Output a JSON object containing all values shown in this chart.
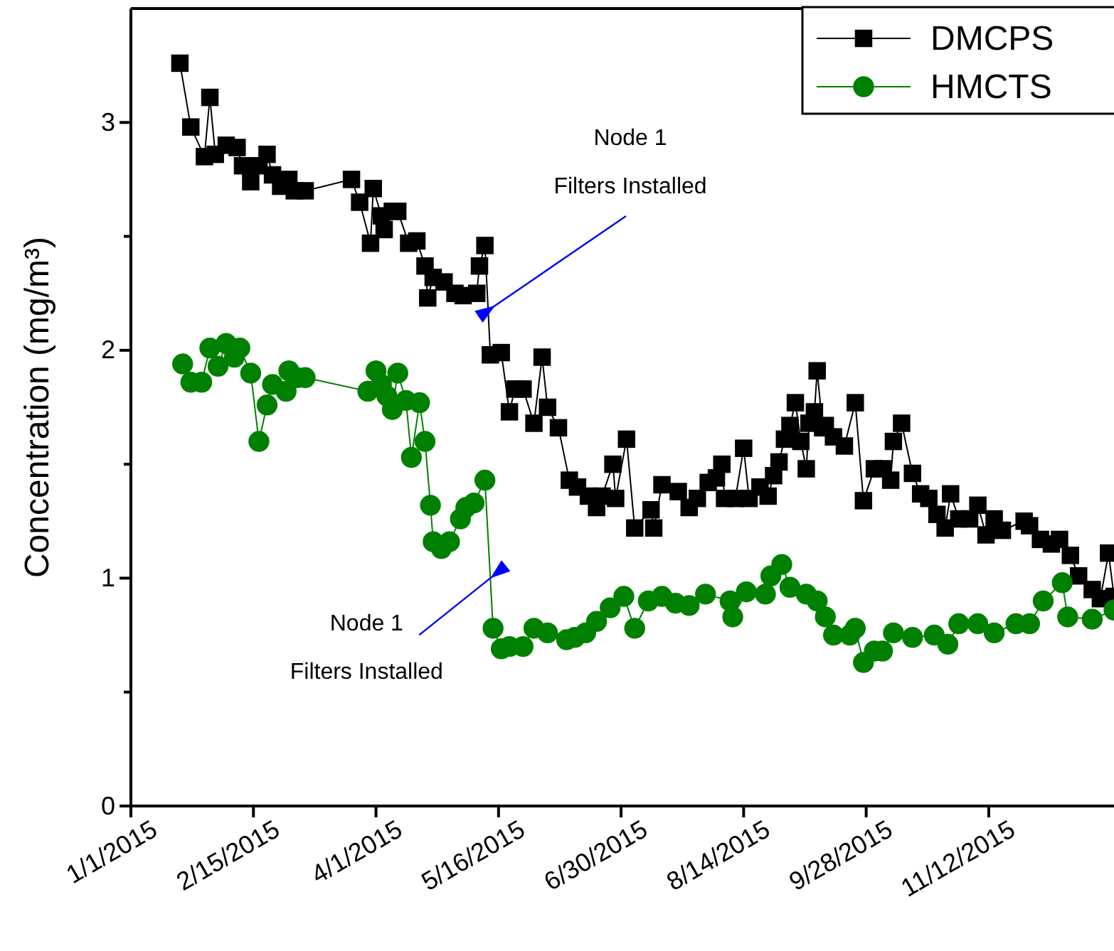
{
  "chart_data": {
    "type": "line",
    "xlabel": null,
    "ylabel": "Concentration (mg/m³)",
    "xlim": [
      "2015-01-01",
      "2015-12-28"
    ],
    "xticks": [
      {
        "value": "2015-01-01",
        "label": "1/1/2015"
      },
      {
        "value": "2015-02-15",
        "label": "2/15/2015"
      },
      {
        "value": "2015-04-01",
        "label": "4/1/2015"
      },
      {
        "value": "2015-05-16",
        "label": "5/16/2015"
      },
      {
        "value": "2015-06-30",
        "label": "6/30/2015"
      },
      {
        "value": "2015-08-14",
        "label": "8/14/2015"
      },
      {
        "value": "2015-09-28",
        "label": "9/28/2015"
      },
      {
        "value": "2015-11-12",
        "label": "11/12/2015"
      }
    ],
    "ylim": [
      0,
      3.5
    ],
    "yticks": [
      0,
      {
        "value": 0.5,
        "label": null
      },
      1,
      {
        "value": 1.5,
        "label": null
      },
      2,
      {
        "value": 2.5,
        "label": null
      },
      3
    ],
    "grid": false,
    "legend": "top right",
    "annotations": [
      "Node 1\nFilters Installed",
      {
        "text": "Node 1\nFilters Installed",
        "x": "2015-05-13",
        "y": 1.0
      }
    ],
    "series": [
      {
        "name": "DMCPS",
        "color": "#000000",
        "marker": "square",
        "x": [
          "2015-01-19",
          "2015-01-23",
          "2015-01-28",
          "2015-01-30",
          "2015-02-01",
          "2015-02-05",
          "2015-02-09",
          "2015-02-11",
          "2015-02-14",
          "2015-02-17",
          "2015-02-20",
          "2015-02-22",
          "2015-02-25",
          "2015-02-28",
          "2015-03-02",
          "2015-03-06",
          "2015-03-23",
          "2015-03-26",
          "2015-03-30",
          "2015-03-31",
          "2015-04-03",
          "2015-04-04",
          "2015-04-07",
          "2015-04-09",
          "2015-04-13",
          "2015-04-16",
          "2015-04-19",
          "2015-04-20",
          "2015-04-22",
          "2015-04-26",
          "2015-04-30",
          "2015-05-03",
          "2015-05-08",
          "2015-05-09",
          "2015-05-11",
          "2015-05-13",
          "2015-05-17",
          "2015-05-20",
          "2015-05-22",
          "2015-05-25",
          "2015-05-29",
          "2015-06-01",
          "2015-06-03",
          "2015-06-07",
          "2015-06-11",
          "2015-06-14",
          "2015-06-18",
          "2015-06-21",
          "2015-06-23",
          "2015-06-27",
          "2015-06-28",
          "2015-07-02",
          "2015-07-05",
          "2015-07-11",
          "2015-07-12",
          "2015-07-15",
          "2015-07-21",
          "2015-07-25",
          "2015-07-28",
          "2015-08-01",
          "2015-08-04",
          "2015-08-06",
          "2015-08-07",
          "2015-08-11",
          "2015-08-14",
          "2015-08-16",
          "2015-08-20",
          "2015-08-23",
          "2015-08-25",
          "2015-08-27",
          "2015-08-29",
          "2015-08-31",
          "2015-09-02",
          "2015-09-04",
          "2015-09-06",
          "2015-09-07",
          "2015-09-09",
          "2015-09-10",
          "2015-09-12",
          "2015-09-13",
          "2015-09-16",
          "2015-09-20",
          "2015-09-24",
          "2015-09-27",
          "2015-10-01",
          "2015-10-04",
          "2015-10-07",
          "2015-10-08",
          "2015-10-11",
          "2015-10-15",
          "2015-10-18",
          "2015-10-21",
          "2015-10-24",
          "2015-10-27",
          "2015-10-29",
          "2015-11-01",
          "2015-11-05",
          "2015-11-08",
          "2015-11-11",
          "2015-11-14",
          "2015-11-17",
          "2015-11-25",
          "2015-11-27",
          "2015-12-01",
          "2015-12-05",
          "2015-12-08",
          "2015-12-12",
          "2015-12-15",
          "2015-12-20",
          "2015-12-23",
          "2015-12-26",
          "2015-12-28"
        ],
        "values": [
          3.26,
          2.98,
          2.85,
          3.11,
          2.86,
          2.9,
          2.89,
          2.81,
          2.74,
          2.81,
          2.86,
          2.77,
          2.72,
          2.75,
          2.7,
          2.7,
          2.75,
          2.65,
          2.47,
          2.71,
          2.59,
          2.53,
          2.61,
          2.61,
          2.47,
          2.48,
          2.37,
          2.23,
          2.32,
          2.3,
          2.25,
          2.24,
          2.25,
          2.37,
          2.46,
          1.98,
          1.99,
          1.73,
          1.83,
          1.83,
          1.68,
          1.97,
          1.75,
          1.66,
          1.43,
          1.4,
          1.36,
          1.31,
          1.36,
          1.5,
          1.35,
          1.61,
          1.22,
          1.3,
          1.22,
          1.41,
          1.38,
          1.31,
          1.35,
          1.42,
          1.44,
          1.5,
          1.35,
          1.35,
          1.57,
          1.35,
          1.4,
          1.36,
          1.45,
          1.51,
          1.61,
          1.67,
          1.77,
          1.6,
          1.48,
          1.68,
          1.73,
          1.91,
          1.66,
          1.67,
          1.62,
          1.58,
          1.77,
          1.34,
          1.48,
          1.48,
          1.43,
          1.6,
          1.68,
          1.46,
          1.37,
          1.35,
          1.28,
          1.22,
          1.37,
          1.26,
          1.26,
          1.32,
          1.19,
          1.26,
          1.21,
          1.25,
          1.23,
          1.17,
          1.15,
          1.17,
          1.1,
          1.01,
          0.95,
          0.91,
          1.11,
          0.92
        ]
      },
      {
        "name": "HMCTS",
        "color": "#008000",
        "marker": "circle",
        "x": [
          "2015-01-20",
          "2015-01-23",
          "2015-01-27",
          "2015-01-30",
          "2015-02-02",
          "2015-02-05",
          "2015-02-08",
          "2015-02-10",
          "2015-02-14",
          "2015-02-17",
          "2015-02-20",
          "2015-02-22",
          "2015-02-27",
          "2015-02-28",
          "2015-03-03",
          "2015-03-06",
          "2015-03-29",
          "2015-04-01",
          "2015-04-03",
          "2015-04-05",
          "2015-04-07",
          "2015-04-09",
          "2015-04-12",
          "2015-04-14",
          "2015-04-17",
          "2015-04-19",
          "2015-04-21",
          "2015-04-22",
          "2015-04-25",
          "2015-04-28",
          "2015-05-02",
          "2015-05-04",
          "2015-05-07",
          "2015-05-11",
          "2015-05-14",
          "2015-05-17",
          "2015-05-20",
          "2015-05-25",
          "2015-05-29",
          "2015-06-03",
          "2015-06-10",
          "2015-06-13",
          "2015-06-17",
          "2015-06-21",
          "2015-06-26",
          "2015-07-01",
          "2015-07-05",
          "2015-07-10",
          "2015-07-15",
          "2015-07-20",
          "2015-07-25",
          "2015-07-31",
          "2015-08-09",
          "2015-08-10",
          "2015-08-15",
          "2015-08-22",
          "2015-08-24",
          "2015-08-28",
          "2015-08-31",
          "2015-09-06",
          "2015-09-10",
          "2015-09-13",
          "2015-09-16",
          "2015-09-22",
          "2015-09-24",
          "2015-09-27",
          "2015-10-01",
          "2015-10-04",
          "2015-10-08",
          "2015-10-15",
          "2015-10-23",
          "2015-10-28",
          "2015-11-01",
          "2015-11-08",
          "2015-11-14",
          "2015-11-22",
          "2015-11-27",
          "2015-12-02",
          "2015-12-09",
          "2015-12-11",
          "2015-12-20",
          "2015-12-28"
        ],
        "values": [
          1.94,
          1.86,
          1.86,
          2.01,
          1.93,
          2.03,
          1.97,
          2.01,
          1.9,
          1.6,
          1.76,
          1.85,
          1.82,
          1.91,
          1.88,
          1.88,
          1.82,
          1.91,
          1.85,
          1.8,
          1.74,
          1.9,
          1.78,
          1.53,
          1.77,
          1.6,
          1.32,
          1.16,
          1.13,
          1.16,
          1.26,
          1.31,
          1.33,
          1.43,
          0.78,
          0.69,
          0.7,
          0.7,
          0.78,
          0.76,
          0.73,
          0.74,
          0.76,
          0.81,
          0.87,
          0.92,
          0.78,
          0.9,
          0.92,
          0.89,
          0.88,
          0.93,
          0.9,
          0.83,
          0.94,
          0.93,
          1.01,
          1.06,
          0.96,
          0.93,
          0.9,
          0.83,
          0.75,
          0.75,
          0.78,
          0.63,
          0.68,
          0.68,
          0.76,
          0.74,
          0.75,
          0.71,
          0.8,
          0.8,
          0.76,
          0.8,
          0.8,
          0.9,
          0.98,
          0.83,
          0.82,
          0.86
        ]
      }
    ]
  }
}
